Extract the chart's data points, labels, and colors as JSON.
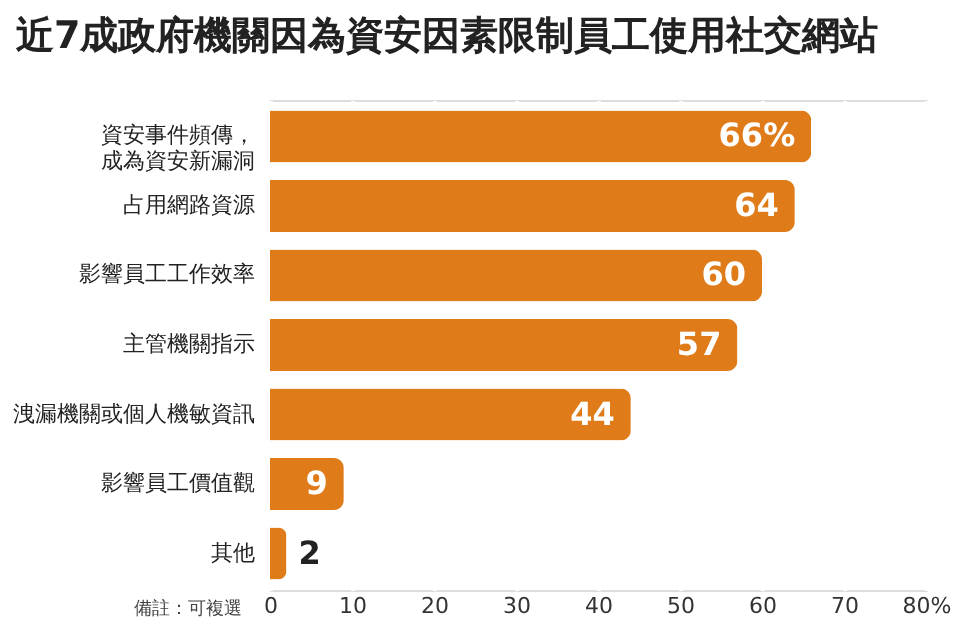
{
  "chart_data": {
    "type": "bar",
    "orientation": "horizontal",
    "title": "近7成政府機關因為資安因素限制員工使用社交網站",
    "categories": [
      "資安事件頻傳，成為資安新漏洞",
      "占用網路資源",
      "影響員工工作效率",
      "主管機關指示",
      "洩漏機關或個人機敏資訊",
      "影響員工價值觀",
      "其他"
    ],
    "values": [
      66,
      64,
      60,
      57,
      44,
      9,
      2
    ],
    "value_labels": [
      "66%",
      "64",
      "60",
      "57",
      "44",
      "9",
      "2"
    ],
    "color": "#e07b1a",
    "xlim": [
      0,
      80
    ],
    "xticks": [
      0,
      10,
      20,
      30,
      40,
      50,
      60,
      70,
      {
        "value": 80,
        "label": "80%"
      }
    ],
    "grid": "x",
    "annotations": [
      "備註：可複選"
    ]
  }
}
